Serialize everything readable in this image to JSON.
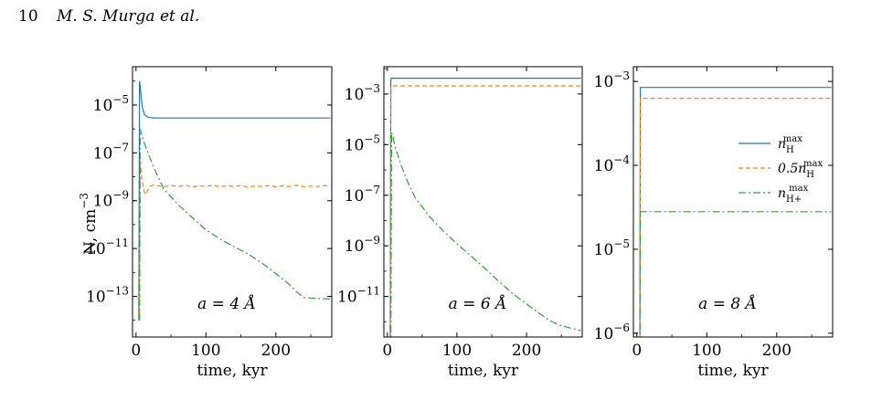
{
  "page": {
    "page_number": "10",
    "running_head": "M. S. Murga et al."
  },
  "figure": {
    "ylabel_main": "N, cm",
    "ylabel_sup": "−3",
    "xlabel": "time, kyr",
    "legend": [
      {
        "text": "n",
        "sub": "H",
        "sup": "max",
        "style": "solid",
        "color": "#1f77b4"
      },
      {
        "text": "0.5n",
        "sub": "H",
        "sup": "max",
        "style": "dashed",
        "color": "#ff7f0e"
      },
      {
        "text": "n",
        "sub": "H+",
        "sup": "max",
        "style": "dashdot",
        "color": "#2ca02c"
      }
    ]
  },
  "chart_data": [
    {
      "type": "line",
      "annotation": "a  =  4 Å",
      "xlabel": "time, kyr",
      "ylabel": "N, cm−3",
      "yscale": "log",
      "xlim": [
        -5,
        280
      ],
      "ylim": [
        2e-15,
        0.0004
      ],
      "xticks": [
        0,
        100,
        200
      ],
      "yticks": [
        {
          "v": 1e-05,
          "base": "10",
          "exp": "−5"
        },
        {
          "v": 1e-07,
          "base": "10",
          "exp": "−7"
        },
        {
          "v": 1e-09,
          "base": "10",
          "exp": "−9"
        },
        {
          "v": 1e-11,
          "base": "10",
          "exp": "−11"
        },
        {
          "v": 1e-13,
          "base": "10",
          "exp": "−13"
        }
      ],
      "series": [
        {
          "name": "n_H^max",
          "color": "#1f77b4",
          "style": "solid",
          "x": [
            4,
            5,
            6,
            7,
            9,
            12,
            16,
            20,
            25,
            30,
            40,
            60,
            100,
            150,
            200,
            278
          ],
          "y": [
            1e-14,
            0.0001,
            6e-05,
            2.5e-05,
            8e-06,
            4e-06,
            3.2e-06,
            3e-06,
            2.9e-06,
            2.85e-06,
            2.85e-06,
            2.85e-06,
            2.85e-06,
            2.85e-06,
            2.85e-06,
            2.85e-06
          ]
        },
        {
          "name": "0.5n_H^max",
          "color": "#ff7f0e",
          "style": "dashed",
          "x": [
            5,
            6,
            7,
            8,
            10,
            12,
            14,
            16,
            20,
            25,
            30,
            40,
            50,
            60,
            70,
            80,
            90,
            100,
            110,
            120,
            130,
            140,
            150,
            160,
            170,
            180,
            190,
            200,
            210,
            220,
            230,
            240,
            250,
            260,
            270,
            278
          ],
          "y": [
            1e-14,
            5e-08,
            2e-08,
            1e-08,
            4e-09,
            2.2e-09,
            1.8e-09,
            2.4e-09,
            4e-09,
            4.5e-09,
            4.2e-09,
            3.8e-09,
            4.3e-09,
            3.9e-09,
            4.4e-09,
            3.7e-09,
            4.2e-09,
            3.9e-09,
            4.4e-09,
            3.8e-09,
            4.2e-09,
            3.9e-09,
            4.3e-09,
            3.7e-09,
            4.1e-09,
            3.9e-09,
            4.3e-09,
            3.8e-09,
            4.2e-09,
            3.9e-09,
            4.4e-09,
            3.8e-09,
            4.1e-09,
            3.9e-09,
            4.3e-09,
            3.8e-09
          ]
        },
        {
          "name": "n_H+^max",
          "color": "#2ca02c",
          "style": "dashdot",
          "x": [
            5,
            6,
            8,
            12,
            20,
            30,
            40,
            60,
            80,
            100,
            120,
            140,
            160,
            180,
            200,
            220,
            230,
            240,
            250,
            265,
            278
          ],
          "y": [
            1e-14,
            1e-06,
            6e-07,
            2.5e-07,
            6e-08,
            1.2e-08,
            3e-09,
            7e-10,
            2e-10,
            6e-11,
            2.5e-11,
            1.2e-11,
            6e-12,
            2.5e-12,
            9e-13,
            3e-13,
            1.5e-13,
            9e-14,
            8.5e-14,
            8e-14,
            7.8e-14
          ]
        }
      ]
    },
    {
      "type": "line",
      "annotation": "a  =  6 Å",
      "xlabel": "time, kyr",
      "yscale": "log",
      "xlim": [
        -5,
        280
      ],
      "ylim": [
        2.5e-13,
        0.012
      ],
      "xticks": [
        0,
        100,
        200
      ],
      "yticks": [
        {
          "v": 0.001,
          "base": "10",
          "exp": "−3"
        },
        {
          "v": 1e-05,
          "base": "10",
          "exp": "−5"
        },
        {
          "v": 1e-07,
          "base": "10",
          "exp": "−7"
        },
        {
          "v": 1e-09,
          "base": "10",
          "exp": "−9"
        },
        {
          "v": 1e-11,
          "base": "10",
          "exp": "−11"
        }
      ],
      "series": [
        {
          "name": "n_H^max",
          "color": "#1f77b4",
          "style": "solid",
          "x": [
            4,
            5,
            6,
            100,
            278
          ],
          "y": [
            1e-13,
            0.004,
            0.0042,
            0.0042,
            0.0042
          ]
        },
        {
          "name": "0.5n_H^max",
          "color": "#ff7f0e",
          "style": "dashed",
          "x": [
            4,
            5,
            6,
            100,
            278
          ],
          "y": [
            1e-13,
            0.002,
            0.0021,
            0.0021,
            0.0021
          ]
        },
        {
          "name": "n_H+^max",
          "color": "#2ca02c",
          "style": "dashdot",
          "x": [
            5,
            6,
            8,
            12,
            20,
            30,
            40,
            60,
            80,
            100,
            120,
            140,
            160,
            180,
            200,
            220,
            230,
            240,
            250,
            265,
            278
          ],
          "y": [
            1e-13,
            3e-05,
            2e-05,
            7e-06,
            1.5e-06,
            3e-07,
            8e-08,
            1.5e-08,
            4e-09,
            1.2e-09,
            4e-10,
            1.3e-10,
            4e-11,
            1.3e-11,
            5e-12,
            2e-12,
            1.3e-12,
            9e-13,
            7e-13,
            5.5e-13,
            4.5e-13
          ]
        }
      ]
    },
    {
      "type": "line",
      "annotation": "a  =  8 Å",
      "xlabel": "time, kyr",
      "yscale": "log",
      "xlim": [
        -5,
        280
      ],
      "ylim": [
        9e-07,
        0.0015
      ],
      "xticks": [
        0,
        100,
        200
      ],
      "yticks": [
        {
          "v": 0.001,
          "base": "10",
          "exp": "−3"
        },
        {
          "v": 0.0001,
          "base": "10",
          "exp": "−4"
        },
        {
          "v": 1e-05,
          "base": "10",
          "exp": "−5"
        },
        {
          "v": 1e-06,
          "base": "10",
          "exp": "−6"
        }
      ],
      "legend": true,
      "series": [
        {
          "name": "n_H^max",
          "color": "#1f77b4",
          "style": "solid",
          "x": [
            4,
            5,
            6,
            100,
            278
          ],
          "y": [
            1e-07,
            0.00085,
            0.00085,
            0.00085,
            0.00085
          ]
        },
        {
          "name": "0.5n_H^max",
          "color": "#ff7f0e",
          "style": "dashed",
          "x": [
            4,
            5,
            6,
            100,
            278
          ],
          "y": [
            1e-07,
            0.00063,
            0.00063,
            0.00063,
            0.00063
          ]
        },
        {
          "name": "n_H+^max",
          "color": "#2ca02c",
          "style": "dashdot",
          "x": [
            4,
            5,
            6,
            100,
            278
          ],
          "y": [
            1e-07,
            2.8e-05,
            2.8e-05,
            2.8e-05,
            2.8e-05
          ]
        }
      ]
    }
  ]
}
